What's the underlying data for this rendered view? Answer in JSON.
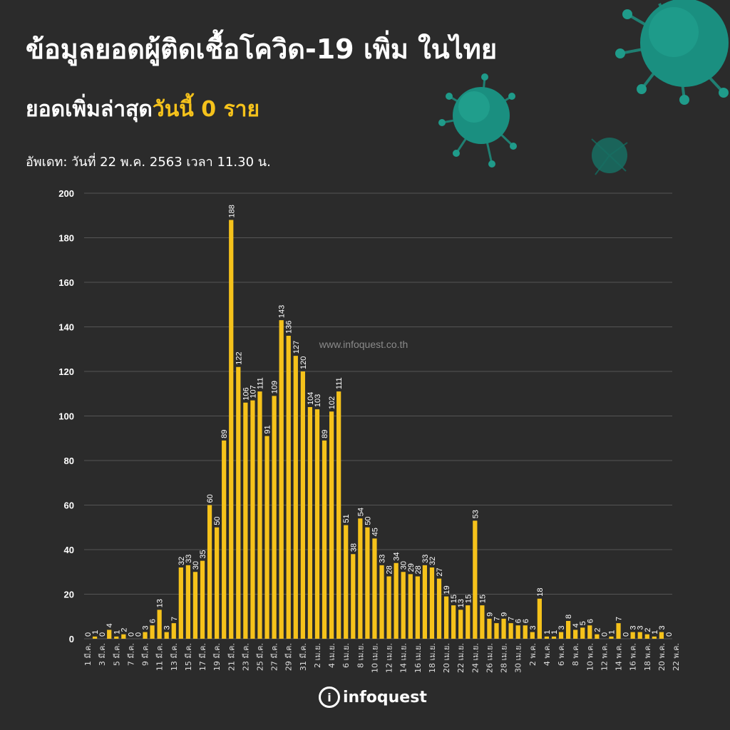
{
  "header": {
    "title": "ข้อมูลยอดผู้ติดเชื้อโควิด-19 เพิ่ม ในไทย",
    "subtitle_prefix": "ยอดเพิ่มล่าสุด",
    "subtitle_highlight": "วันนี้ 0 ราย",
    "update": "อัพเดท: วันที่ 22 พ.ค. 2563 เวลา 11.30 น."
  },
  "watermark": "www.infoquest.co.th",
  "logo": {
    "mark": "i",
    "text": "infoquest"
  },
  "colors": {
    "background": "#2b2b2b",
    "bar": "#f5c21b",
    "grid": "#555555",
    "text": "#ffffff",
    "highlight": "#f5c21b"
  },
  "chart_data": {
    "type": "bar",
    "title": "",
    "xlabel": "",
    "ylabel": "",
    "ylim": [
      0,
      200
    ],
    "yticks": [
      0,
      20,
      40,
      60,
      80,
      100,
      120,
      140,
      160,
      180,
      200
    ],
    "grid": true,
    "x_tick_labels": [
      "1 มี.ค.",
      "3 มี.ค.",
      "5 มี.ค.",
      "7 มี.ค.",
      "9 มี.ค.",
      "11 มี.ค.",
      "13 มี.ค.",
      "15 มี.ค.",
      "17 มี.ค.",
      "19 มี.ค.",
      "21 มี.ค.",
      "23 มี.ค.",
      "25 มี.ค.",
      "27 มี.ค.",
      "29 มี.ค.",
      "31 มี.ค.",
      "2 เม.ย.",
      "4 เม.ย.",
      "6 เม.ย.",
      "8 เม.ย.",
      "10 เม.ย.",
      "12 เม.ย.",
      "14 เม.ย.",
      "16 เม.ย.",
      "18 เม.ย.",
      "20 เม.ย.",
      "22 เม.ย.",
      "24 เม.ย.",
      "26 เม.ย.",
      "28 เม.ย.",
      "30 เม.ย.",
      "2 พ.ค.",
      "4 พ.ค.",
      "6 พ.ค.",
      "8 พ.ค.",
      "10 พ.ค.",
      "12 พ.ค.",
      "14 พ.ค.",
      "16 พ.ค.",
      "18 พ.ค.",
      "20 พ.ค.",
      "22 พ.ค."
    ],
    "values": [
      0,
      1,
      0,
      4,
      1,
      2,
      0,
      0,
      3,
      6,
      13,
      3,
      7,
      32,
      33,
      30,
      35,
      60,
      50,
      89,
      188,
      122,
      106,
      107,
      111,
      91,
      109,
      143,
      136,
      127,
      120,
      104,
      103,
      89,
      102,
      111,
      51,
      38,
      54,
      50,
      45,
      33,
      28,
      34,
      30,
      29,
      28,
      33,
      32,
      27,
      19,
      15,
      13,
      15,
      53,
      15,
      9,
      7,
      9,
      7,
      6,
      6,
      3,
      18,
      1,
      1,
      3,
      8,
      4,
      5,
      6,
      2,
      0,
      1,
      7,
      0,
      3,
      3,
      2,
      1,
      3,
      0
    ]
  }
}
